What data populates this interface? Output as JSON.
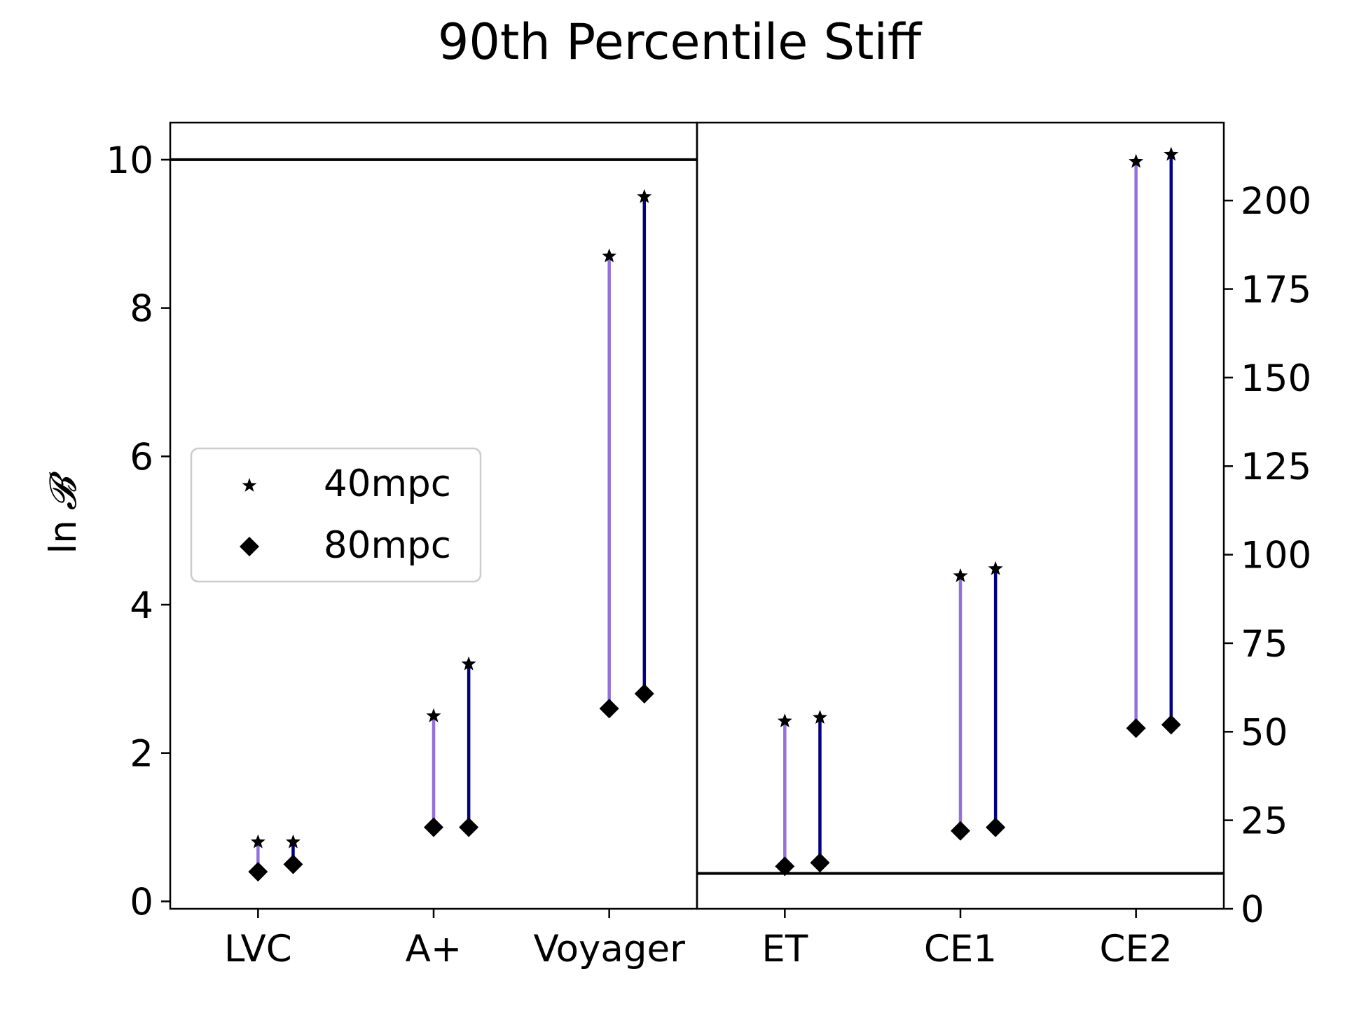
{
  "chart_data": {
    "type": "scatter",
    "title": "90th Percentile Stiff",
    "ylabel_text": "ln",
    "ylabel_symbol": "𝓑",
    "legend": {
      "placement": "center-left",
      "entries": [
        {
          "label": "40mpc",
          "marker": "star"
        },
        {
          "label": "80mpc",
          "marker": "diamond"
        }
      ]
    },
    "colors": {
      "40mpc": "#9370db",
      "80mpc": "#000080",
      "marker": "#000000",
      "threshold": "#000000"
    },
    "left_panel": {
      "categories": [
        "LVC",
        "A+",
        "Voyager"
      ],
      "ylim": [
        -0.1,
        10.5
      ],
      "yticks": [
        "0",
        "2",
        "4",
        "6",
        "8",
        "10"
      ],
      "threshold": 10,
      "series": [
        {
          "name": "40mpc",
          "star": [
            0.8,
            2.5,
            8.7
          ],
          "diamond": [
            0.4,
            1.0,
            2.6
          ]
        },
        {
          "name": "80mpc",
          "star": [
            0.8,
            3.2,
            9.5
          ],
          "diamond": [
            0.5,
            1.0,
            2.8
          ]
        }
      ]
    },
    "right_panel": {
      "categories": [
        "ET",
        "CE1",
        "CE2"
      ],
      "ylim": [
        0,
        222
      ],
      "yticks": [
        "0",
        "25",
        "50",
        "75",
        "100",
        "125",
        "150",
        "175",
        "200"
      ],
      "threshold": 10,
      "series": [
        {
          "name": "40mpc",
          "star": [
            53,
            94,
            211
          ],
          "diamond": [
            12,
            22,
            51
          ]
        },
        {
          "name": "80mpc",
          "star": [
            54,
            96,
            213
          ],
          "diamond": [
            13,
            23,
            52
          ]
        }
      ]
    }
  }
}
